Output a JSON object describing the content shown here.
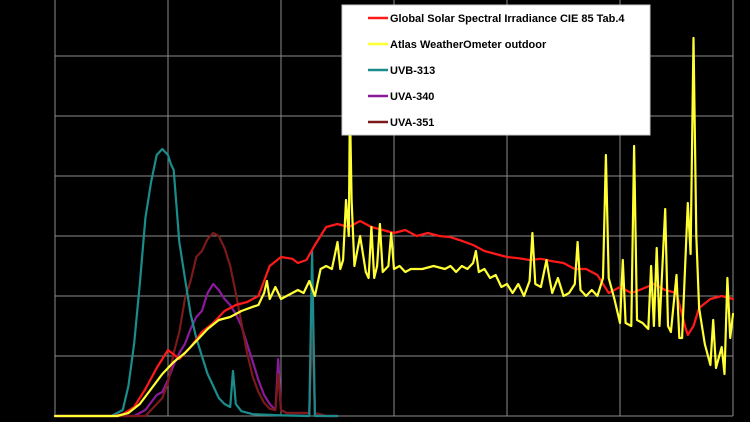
{
  "chart_data": {
    "type": "line",
    "grid": true,
    "legend_placement": "top-right",
    "background": "#000000",
    "grid_color": "#8c8c8c",
    "xlim": [
      0,
      12
    ],
    "ylim": [
      0,
      7
    ],
    "series": [
      {
        "name": "Global Solar Spectral Irradiance CIE 85 Tab.4",
        "color": "#ff1a1a",
        "points": [
          [
            0,
            0
          ],
          [
            1.05,
            0
          ],
          [
            1.2,
            0.03
          ],
          [
            1.4,
            0.15
          ],
          [
            1.6,
            0.45
          ],
          [
            1.8,
            0.8
          ],
          [
            2.0,
            1.1
          ],
          [
            2.2,
            0.95
          ],
          [
            2.4,
            1.15
          ],
          [
            2.6,
            1.4
          ],
          [
            2.8,
            1.55
          ],
          [
            3.0,
            1.75
          ],
          [
            3.2,
            1.85
          ],
          [
            3.4,
            1.9
          ],
          [
            3.6,
            2.0
          ],
          [
            3.8,
            2.5
          ],
          [
            4.0,
            2.65
          ],
          [
            4.2,
            2.62
          ],
          [
            4.3,
            2.55
          ],
          [
            4.45,
            2.6
          ],
          [
            4.6,
            2.85
          ],
          [
            4.8,
            3.15
          ],
          [
            5.0,
            3.2
          ],
          [
            5.2,
            3.15
          ],
          [
            5.4,
            3.25
          ],
          [
            5.6,
            3.15
          ],
          [
            5.8,
            3.1
          ],
          [
            6.0,
            3.05
          ],
          [
            6.2,
            3.1
          ],
          [
            6.4,
            3.0
          ],
          [
            6.6,
            3.05
          ],
          [
            6.8,
            3.0
          ],
          [
            7.0,
            2.98
          ],
          [
            7.2,
            2.92
          ],
          [
            7.4,
            2.85
          ],
          [
            7.6,
            2.75
          ],
          [
            7.8,
            2.7
          ],
          [
            8.0,
            2.65
          ],
          [
            8.2,
            2.63
          ],
          [
            8.4,
            2.6
          ],
          [
            8.6,
            2.62
          ],
          [
            8.8,
            2.58
          ],
          [
            9.0,
            2.55
          ],
          [
            9.2,
            2.45
          ],
          [
            9.4,
            2.45
          ],
          [
            9.6,
            2.35
          ],
          [
            9.8,
            2.05
          ],
          [
            10.0,
            2.15
          ],
          [
            10.2,
            2.05
          ],
          [
            10.4,
            2.12
          ],
          [
            10.6,
            2.2
          ],
          [
            10.8,
            2.1
          ],
          [
            11.0,
            2.05
          ],
          [
            11.15,
            1.5
          ],
          [
            11.2,
            1.35
          ],
          [
            11.3,
            1.5
          ],
          [
            11.4,
            1.8
          ],
          [
            11.6,
            1.95
          ],
          [
            11.8,
            2.0
          ],
          [
            12.0,
            1.95
          ]
        ]
      },
      {
        "name": "Atlas WeatherOmeter outdoor",
        "color": "#ffff33",
        "points": [
          [
            0,
            0
          ],
          [
            1.1,
            0
          ],
          [
            1.3,
            0.05
          ],
          [
            1.5,
            0.2
          ],
          [
            1.7,
            0.45
          ],
          [
            1.9,
            0.7
          ],
          [
            2.1,
            0.9
          ],
          [
            2.3,
            1.05
          ],
          [
            2.5,
            1.25
          ],
          [
            2.7,
            1.45
          ],
          [
            2.9,
            1.6
          ],
          [
            3.1,
            1.65
          ],
          [
            3.3,
            1.75
          ],
          [
            3.5,
            1.82
          ],
          [
            3.6,
            1.85
          ],
          [
            3.7,
            2.05
          ],
          [
            3.75,
            2.25
          ],
          [
            3.8,
            1.95
          ],
          [
            3.9,
            2.15
          ],
          [
            4.0,
            1.95
          ],
          [
            4.1,
            2.0
          ],
          [
            4.2,
            2.05
          ],
          [
            4.3,
            2.1
          ],
          [
            4.4,
            2.05
          ],
          [
            4.5,
            2.25
          ],
          [
            4.6,
            2.0
          ],
          [
            4.7,
            2.45
          ],
          [
            4.8,
            2.5
          ],
          [
            4.9,
            2.45
          ],
          [
            5.0,
            2.9
          ],
          [
            5.05,
            2.45
          ],
          [
            5.1,
            2.6
          ],
          [
            5.15,
            3.6
          ],
          [
            5.2,
            3.0
          ],
          [
            5.22,
            5.2
          ],
          [
            5.25,
            3.6
          ],
          [
            5.3,
            2.5
          ],
          [
            5.4,
            3.0
          ],
          [
            5.5,
            2.4
          ],
          [
            5.55,
            2.3
          ],
          [
            5.6,
            3.15
          ],
          [
            5.65,
            2.3
          ],
          [
            5.7,
            2.5
          ],
          [
            5.75,
            3.2
          ],
          [
            5.8,
            2.4
          ],
          [
            5.9,
            2.5
          ],
          [
            5.95,
            3.05
          ],
          [
            6.0,
            2.45
          ],
          [
            6.1,
            2.5
          ],
          [
            6.2,
            2.4
          ],
          [
            6.3,
            2.45
          ],
          [
            6.5,
            2.45
          ],
          [
            6.7,
            2.5
          ],
          [
            6.9,
            2.45
          ],
          [
            7.0,
            2.5
          ],
          [
            7.1,
            2.4
          ],
          [
            7.2,
            2.5
          ],
          [
            7.3,
            2.45
          ],
          [
            7.4,
            2.55
          ],
          [
            7.45,
            2.75
          ],
          [
            7.5,
            2.4
          ],
          [
            7.6,
            2.45
          ],
          [
            7.7,
            2.3
          ],
          [
            7.8,
            2.35
          ],
          [
            7.9,
            2.15
          ],
          [
            8.0,
            2.2
          ],
          [
            8.1,
            2.05
          ],
          [
            8.2,
            2.2
          ],
          [
            8.3,
            2.0
          ],
          [
            8.4,
            2.25
          ],
          [
            8.45,
            3.05
          ],
          [
            8.5,
            2.2
          ],
          [
            8.6,
            2.15
          ],
          [
            8.7,
            2.6
          ],
          [
            8.75,
            2.3
          ],
          [
            8.8,
            2.05
          ],
          [
            8.9,
            2.3
          ],
          [
            9.0,
            2.0
          ],
          [
            9.1,
            2.05
          ],
          [
            9.2,
            2.2
          ],
          [
            9.25,
            2.9
          ],
          [
            9.3,
            2.1
          ],
          [
            9.4,
            2.0
          ],
          [
            9.5,
            2.1
          ],
          [
            9.6,
            2.0
          ],
          [
            9.7,
            2.3
          ],
          [
            9.75,
            4.35
          ],
          [
            9.8,
            2.3
          ],
          [
            9.9,
            1.95
          ],
          [
            10.0,
            1.55
          ],
          [
            10.05,
            2.6
          ],
          [
            10.1,
            1.55
          ],
          [
            10.2,
            1.5
          ],
          [
            10.25,
            4.5
          ],
          [
            10.3,
            1.6
          ],
          [
            10.4,
            1.55
          ],
          [
            10.5,
            1.45
          ],
          [
            10.55,
            2.5
          ],
          [
            10.6,
            1.5
          ],
          [
            10.65,
            2.8
          ],
          [
            10.7,
            1.5
          ],
          [
            10.8,
            3.45
          ],
          [
            10.85,
            1.5
          ],
          [
            10.9,
            1.4
          ],
          [
            11.0,
            2.35
          ],
          [
            11.05,
            1.3
          ],
          [
            11.1,
            1.3
          ],
          [
            11.2,
            3.55
          ],
          [
            11.25,
            2.7
          ],
          [
            11.3,
            6.3
          ],
          [
            11.35,
            3.0
          ],
          [
            11.4,
            1.8
          ],
          [
            11.5,
            1.2
          ],
          [
            11.6,
            0.85
          ],
          [
            11.65,
            1.6
          ],
          [
            11.7,
            0.8
          ],
          [
            11.8,
            1.15
          ],
          [
            11.85,
            0.7
          ],
          [
            11.9,
            2.3
          ],
          [
            11.95,
            1.3
          ],
          [
            12.0,
            1.7
          ]
        ]
      },
      {
        "name": "UVB-313",
        "color": "#1a8c8c",
        "points": [
          [
            0,
            0
          ],
          [
            1.0,
            0
          ],
          [
            1.2,
            0.1
          ],
          [
            1.3,
            0.5
          ],
          [
            1.4,
            1.2
          ],
          [
            1.5,
            2.2
          ],
          [
            1.6,
            3.3
          ],
          [
            1.7,
            3.9
          ],
          [
            1.8,
            4.35
          ],
          [
            1.9,
            4.45
          ],
          [
            2.0,
            4.35
          ],
          [
            2.05,
            4.2
          ],
          [
            2.1,
            4.1
          ],
          [
            2.15,
            3.5
          ],
          [
            2.2,
            2.9
          ],
          [
            2.3,
            2.3
          ],
          [
            2.4,
            1.7
          ],
          [
            2.5,
            1.3
          ],
          [
            2.6,
            1.0
          ],
          [
            2.7,
            0.7
          ],
          [
            2.8,
            0.5
          ],
          [
            2.9,
            0.3
          ],
          [
            3.0,
            0.2
          ],
          [
            3.1,
            0.15
          ],
          [
            3.15,
            0.75
          ],
          [
            3.2,
            0.2
          ],
          [
            3.3,
            0.08
          ],
          [
            3.5,
            0.03
          ],
          [
            4.0,
            0.01
          ],
          [
            4.5,
            0
          ],
          [
            4.55,
            2.75
          ],
          [
            4.6,
            0
          ],
          [
            5.0,
            0
          ]
        ]
      },
      {
        "name": "UVA-340",
        "color": "#8b1a9a",
        "points": [
          [
            0,
            0
          ],
          [
            1.4,
            0
          ],
          [
            1.6,
            0.1
          ],
          [
            1.8,
            0.35
          ],
          [
            1.9,
            0.4
          ],
          [
            2.0,
            0.6
          ],
          [
            2.1,
            0.85
          ],
          [
            2.2,
            1.05
          ],
          [
            2.3,
            1.2
          ],
          [
            2.4,
            1.45
          ],
          [
            2.5,
            1.65
          ],
          [
            2.6,
            1.75
          ],
          [
            2.7,
            2.05
          ],
          [
            2.8,
            2.2
          ],
          [
            2.9,
            2.1
          ],
          [
            3.0,
            1.95
          ],
          [
            3.1,
            1.85
          ],
          [
            3.2,
            1.7
          ],
          [
            3.3,
            1.5
          ],
          [
            3.4,
            1.2
          ],
          [
            3.5,
            0.9
          ],
          [
            3.6,
            0.6
          ],
          [
            3.7,
            0.35
          ],
          [
            3.8,
            0.2
          ],
          [
            3.9,
            0.1
          ],
          [
            3.95,
            0.95
          ],
          [
            4.0,
            0.1
          ],
          [
            4.1,
            0.05
          ],
          [
            4.5,
            0.05
          ],
          [
            4.55,
            2.2
          ],
          [
            4.6,
            0.05
          ],
          [
            4.8,
            0
          ],
          [
            5.0,
            0
          ]
        ]
      },
      {
        "name": "UVA-351",
        "color": "#7a1a1a",
        "points": [
          [
            0,
            0
          ],
          [
            1.6,
            0
          ],
          [
            1.8,
            0.2
          ],
          [
            1.9,
            0.3
          ],
          [
            2.0,
            0.55
          ],
          [
            2.1,
            1.05
          ],
          [
            2.2,
            1.4
          ],
          [
            2.3,
            1.95
          ],
          [
            2.4,
            2.25
          ],
          [
            2.5,
            2.65
          ],
          [
            2.6,
            2.75
          ],
          [
            2.7,
            2.95
          ],
          [
            2.8,
            3.05
          ],
          [
            2.9,
            3.0
          ],
          [
            3.0,
            2.8
          ],
          [
            3.1,
            2.5
          ],
          [
            3.2,
            2.05
          ],
          [
            3.3,
            1.55
          ],
          [
            3.4,
            1.05
          ],
          [
            3.5,
            0.65
          ],
          [
            3.6,
            0.4
          ],
          [
            3.7,
            0.22
          ],
          [
            3.8,
            0.12
          ],
          [
            3.9,
            0.1
          ],
          [
            3.95,
            0.7
          ],
          [
            4.0,
            0.1
          ],
          [
            4.1,
            0.05
          ],
          [
            4.5,
            0.05
          ],
          [
            4.55,
            1.5
          ],
          [
            4.6,
            0.05
          ],
          [
            4.8,
            0
          ],
          [
            5.0,
            0
          ]
        ]
      }
    ]
  }
}
